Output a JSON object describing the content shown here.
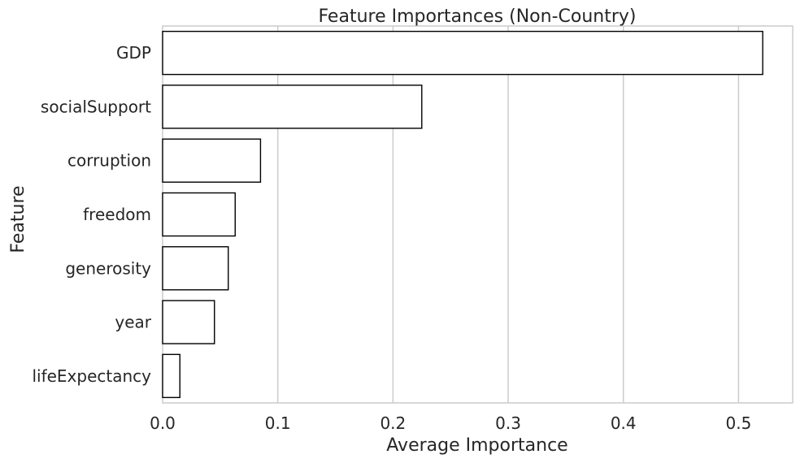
{
  "chart_data": {
    "type": "bar",
    "orientation": "horizontal",
    "title": "Feature Importances (Non-Country)",
    "xlabel": "Average Importance",
    "ylabel": "Feature",
    "categories": [
      "GDP",
      "socialSupport",
      "corruption",
      "freedom",
      "generosity",
      "year",
      "lifeExpectancy"
    ],
    "values": [
      0.521,
      0.225,
      0.085,
      0.063,
      0.057,
      0.045,
      0.015
    ],
    "xlim": [
      0,
      0.547
    ],
    "xticks": [
      0.0,
      0.1,
      0.2,
      0.3,
      0.4,
      0.5
    ],
    "xtick_labels": [
      "0.0",
      "0.1",
      "0.2",
      "0.3",
      "0.4",
      "0.5"
    ],
    "grid": "vertical",
    "bar_fill": "#ffffff",
    "bar_edge": "#000000"
  }
}
